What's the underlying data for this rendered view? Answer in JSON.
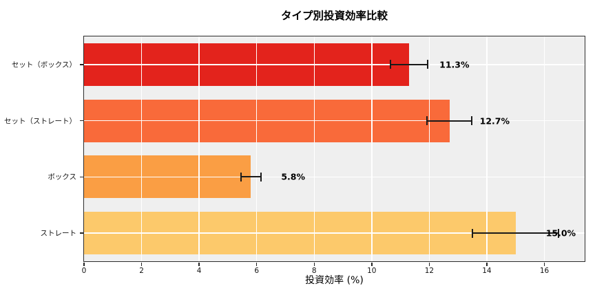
{
  "title": "タイプ別投資効率比較",
  "chart_data": {
    "type": "bar",
    "orientation": "horizontal",
    "title": "タイプ別投資効率比較",
    "xlabel": "投資効率 (%)",
    "categories": [
      "セット（ボックス）",
      "セット（ストレート）",
      "ボックス",
      "ストレート"
    ],
    "values": [
      11.3,
      12.7,
      5.8,
      15.0
    ],
    "errors": [
      0.65,
      0.78,
      0.35,
      1.5
    ],
    "value_labels": [
      "11.3%",
      "12.7%",
      "5.8%",
      "15.0%"
    ],
    "bar_colors": [
      "#e3231c",
      "#f96a3a",
      "#fa9e44",
      "#fcc96b"
    ],
    "xticks": [
      0,
      2,
      4,
      6,
      8,
      10,
      12,
      14,
      16
    ],
    "xlim": [
      0,
      17.4
    ],
    "grid": true,
    "grid_color": "#ffffff",
    "plot_background": "#efefef",
    "figure_background": "#ffffff",
    "spine_color": "#2b2b2b",
    "legend": "none"
  }
}
